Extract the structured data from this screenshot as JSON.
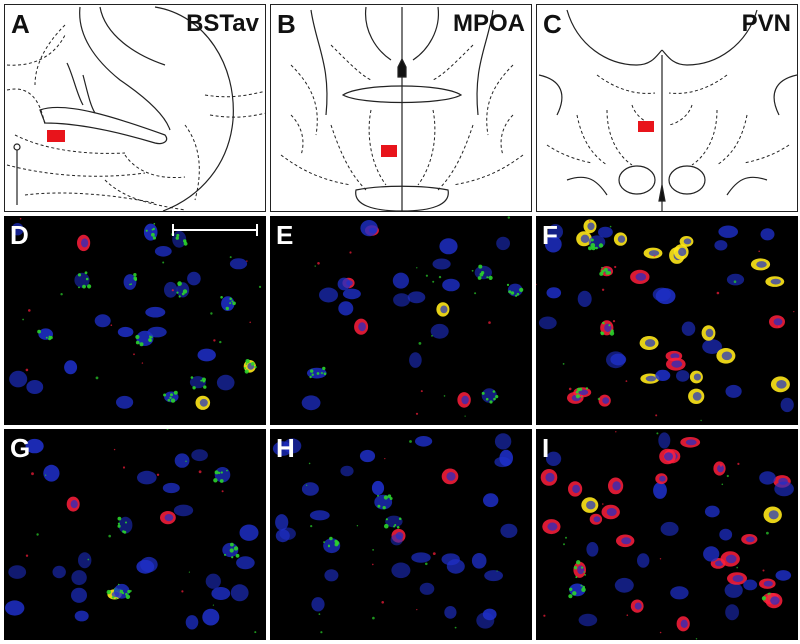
{
  "panels": {
    "A": {
      "letter": "A",
      "region": "BSTav"
    },
    "B": {
      "letter": "B",
      "region": "MPOA"
    },
    "C": {
      "letter": "C",
      "region": "PVN"
    },
    "D": {
      "letter": "D"
    },
    "E": {
      "letter": "E"
    },
    "F": {
      "letter": "F"
    },
    "G": {
      "letter": "G"
    },
    "H": {
      "letter": "H"
    },
    "I": {
      "letter": "I"
    }
  },
  "colors": {
    "nuclei": "#1e2fc8",
    "green_signal": "#2bd42b",
    "red_signal": "#ff1e3c",
    "colocalized": "#ffe81a",
    "region_marker": "#e8141b",
    "background": "#000000"
  }
}
